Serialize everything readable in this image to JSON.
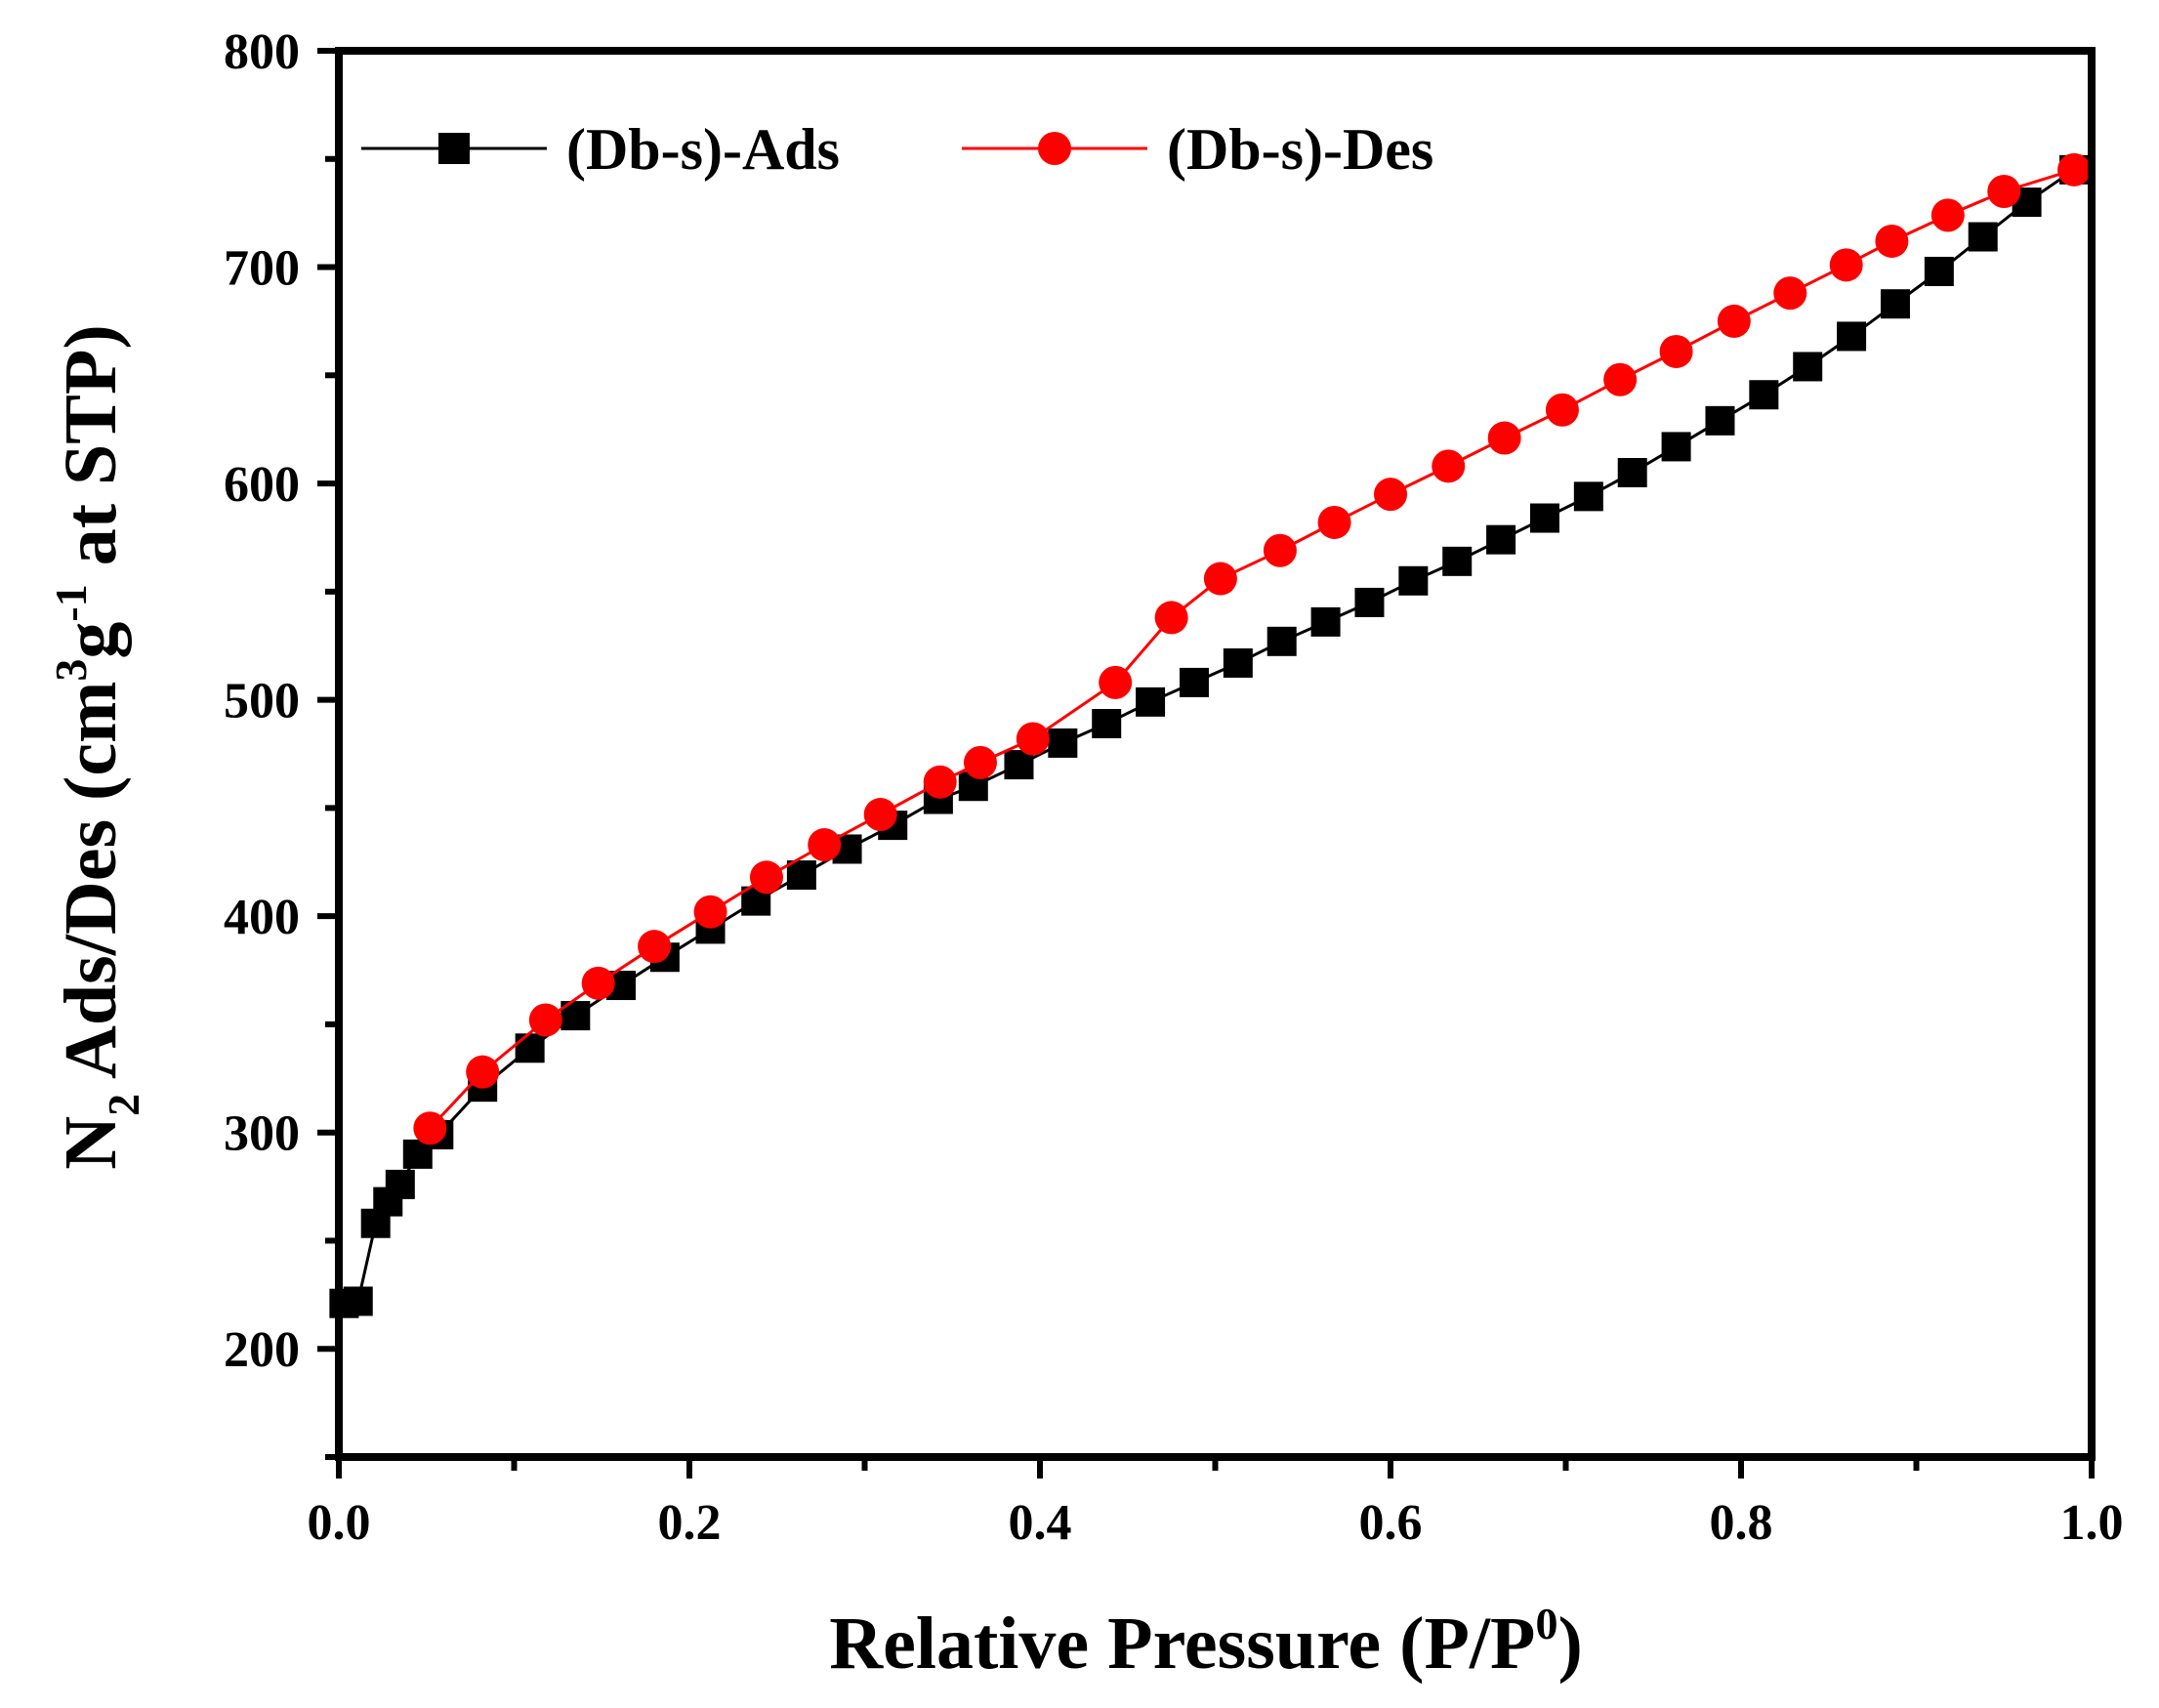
{
  "chart_data": {
    "type": "line",
    "title": "",
    "xlabel": {
      "main": "Relative Pressure (P/P",
      "sup": "0",
      "tail": ")"
    },
    "ylabel": {
      "p1": "N",
      "sub": "2",
      "p2": " Ads/Des (cm",
      "sup1": "3",
      "p3": "g",
      "sup2": "-1",
      "p4": " at STP)"
    },
    "xlim": [
      0,
      1.0
    ],
    "ylim": [
      150,
      800
    ],
    "x_ticks": [
      0.0,
      0.2,
      0.4,
      0.6,
      0.8,
      1.0
    ],
    "x_tick_labels": [
      "0.0",
      "0.2",
      "0.4",
      "0.6",
      "0.8",
      "1.0"
    ],
    "y_ticks": [
      200,
      300,
      400,
      500,
      600,
      700,
      800
    ],
    "y_tick_labels": [
      "200",
      "300",
      "400",
      "500",
      "600",
      "700",
      "800"
    ],
    "legend_position": "top-left",
    "series": [
      {
        "name": "(Db-s)-Ads",
        "color": "#000000",
        "marker": "square",
        "x": [
          0.003,
          0.011,
          0.021,
          0.028,
          0.035,
          0.045,
          0.057,
          0.082,
          0.109,
          0.135,
          0.161,
          0.186,
          0.212,
          0.238,
          0.264,
          0.29,
          0.316,
          0.342,
          0.362,
          0.388,
          0.413,
          0.438,
          0.463,
          0.488,
          0.513,
          0.538,
          0.563,
          0.588,
          0.613,
          0.638,
          0.663,
          0.688,
          0.713,
          0.738,
          0.763,
          0.788,
          0.813,
          0.838,
          0.863,
          0.888,
          0.913,
          0.938,
          0.963,
          0.99
        ],
        "y": [
          221,
          222,
          258,
          268,
          276,
          290,
          299,
          321,
          339,
          354,
          368,
          381,
          394,
          407,
          419,
          431,
          442,
          454,
          460,
          470,
          480,
          489,
          499,
          508,
          517,
          527,
          536,
          545,
          555,
          564,
          574,
          584,
          594,
          605,
          617,
          629,
          641,
          654,
          668,
          683,
          698,
          714,
          730,
          745
        ]
      },
      {
        "name": "(Db-s)-Des",
        "color": "#ff0000",
        "marker": "circle",
        "x": [
          0.052,
          0.082,
          0.118,
          0.148,
          0.18,
          0.212,
          0.244,
          0.277,
          0.309,
          0.343,
          0.366,
          0.396,
          0.443,
          0.475,
          0.503,
          0.537,
          0.568,
          0.6,
          0.633,
          0.665,
          0.698,
          0.731,
          0.763,
          0.796,
          0.828,
          0.86,
          0.886,
          0.918,
          0.95,
          0.99
        ],
        "y": [
          302,
          328,
          352,
          369,
          386,
          402,
          418,
          433,
          447,
          462,
          471,
          482,
          508,
          538,
          556,
          569,
          582,
          595,
          608,
          621,
          634,
          648,
          661,
          675,
          688,
          701,
          712,
          724,
          735,
          745
        ]
      }
    ]
  }
}
